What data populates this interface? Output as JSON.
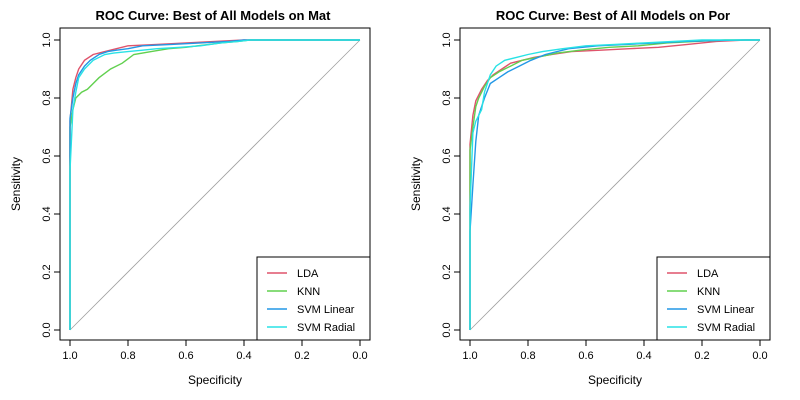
{
  "chart_data": [
    {
      "type": "line",
      "title": "ROC Curve: Best of All Models on Mat",
      "xlabel": "Specificity",
      "ylabel": "Sensitivity",
      "xlim": [
        1.0,
        0.0
      ],
      "ylim": [
        0.0,
        1.0
      ],
      "x_ticks": [
        "1.0",
        "0.8",
        "0.6",
        "0.4",
        "0.2",
        "0.0"
      ],
      "y_ticks": [
        "0.0",
        "0.2",
        "0.4",
        "0.6",
        "0.8",
        "1.0"
      ],
      "diagonal_reference": true,
      "legend": "bottom-right",
      "series": [
        {
          "name": "LDA",
          "color": "#DF536B",
          "x": [
            1.0,
            1.0,
            0.99,
            0.98,
            0.97,
            0.95,
            0.92,
            0.88,
            0.84,
            0.8,
            0.7,
            0.6,
            0.5,
            0.4,
            0.0
          ],
          "y": [
            0.0,
            0.72,
            0.83,
            0.87,
            0.9,
            0.93,
            0.95,
            0.96,
            0.97,
            0.98,
            0.985,
            0.99,
            0.995,
            1.0,
            1.0
          ]
        },
        {
          "name": "KNN",
          "color": "#61D04F",
          "x": [
            1.0,
            1.0,
            0.99,
            0.98,
            0.96,
            0.94,
            0.92,
            0.9,
            0.86,
            0.82,
            0.78,
            0.72,
            0.66,
            0.6,
            0.56,
            0.52,
            0.48,
            0.42,
            0.38,
            0.0
          ],
          "y": [
            0.0,
            0.7,
            0.76,
            0.8,
            0.82,
            0.83,
            0.85,
            0.87,
            0.9,
            0.92,
            0.95,
            0.96,
            0.97,
            0.975,
            0.98,
            0.985,
            0.99,
            0.995,
            1.0,
            1.0
          ]
        },
        {
          "name": "SVM Linear",
          "color": "#2297E6",
          "x": [
            1.0,
            1.0,
            0.99,
            0.98,
            0.97,
            0.95,
            0.93,
            0.9,
            0.87,
            0.84,
            0.8,
            0.75,
            0.65,
            0.55,
            0.45,
            0.4,
            0.0
          ],
          "y": [
            0.0,
            0.73,
            0.8,
            0.85,
            0.88,
            0.91,
            0.93,
            0.95,
            0.96,
            0.965,
            0.97,
            0.98,
            0.985,
            0.99,
            0.995,
            1.0,
            1.0
          ]
        },
        {
          "name": "SVM Radial",
          "color": "#28E2E5",
          "x": [
            1.0,
            1.0,
            0.99,
            0.98,
            0.97,
            0.95,
            0.92,
            0.88,
            0.85,
            0.8,
            0.75,
            0.7,
            0.62,
            0.55,
            0.48,
            0.42,
            0.38,
            0.0
          ],
          "y": [
            0.0,
            0.55,
            0.76,
            0.82,
            0.87,
            0.9,
            0.93,
            0.95,
            0.955,
            0.96,
            0.965,
            0.97,
            0.975,
            0.98,
            0.99,
            0.995,
            1.0,
            1.0
          ]
        }
      ]
    },
    {
      "type": "line",
      "title": "ROC Curve: Best of All Models on Por",
      "xlabel": "Specificity",
      "ylabel": "Sensitivity",
      "xlim": [
        1.0,
        0.0
      ],
      "ylim": [
        0.0,
        1.0
      ],
      "x_ticks": [
        "1.0",
        "0.8",
        "0.6",
        "0.4",
        "0.2",
        "0.0"
      ],
      "y_ticks": [
        "0.0",
        "0.2",
        "0.4",
        "0.6",
        "0.8",
        "1.0"
      ],
      "diagonal_reference": true,
      "legend": "bottom-right",
      "series": [
        {
          "name": "LDA",
          "color": "#DF536B",
          "x": [
            1.0,
            1.0,
            0.99,
            0.98,
            0.96,
            0.94,
            0.92,
            0.89,
            0.86,
            0.82,
            0.78,
            0.72,
            0.65,
            0.55,
            0.45,
            0.35,
            0.25,
            0.15,
            0.05,
            0.0
          ],
          "y": [
            0.0,
            0.64,
            0.74,
            0.79,
            0.83,
            0.86,
            0.88,
            0.9,
            0.92,
            0.93,
            0.94,
            0.95,
            0.96,
            0.965,
            0.97,
            0.975,
            0.985,
            0.995,
            1.0,
            1.0
          ]
        },
        {
          "name": "KNN",
          "color": "#61D04F",
          "x": [
            1.0,
            1.0,
            0.99,
            0.98,
            0.97,
            0.95,
            0.93,
            0.9,
            0.86,
            0.82,
            0.77,
            0.7,
            0.62,
            0.52,
            0.42,
            0.32,
            0.22,
            0.12,
            0.0
          ],
          "y": [
            0.0,
            0.62,
            0.7,
            0.77,
            0.8,
            0.84,
            0.87,
            0.89,
            0.91,
            0.93,
            0.94,
            0.955,
            0.965,
            0.975,
            0.98,
            0.99,
            0.995,
            1.0,
            1.0
          ]
        },
        {
          "name": "SVM Linear",
          "color": "#2297E6",
          "x": [
            1.0,
            1.0,
            0.99,
            0.98,
            0.97,
            0.95,
            0.93,
            0.9,
            0.87,
            0.83,
            0.79,
            0.74,
            0.66,
            0.56,
            0.46,
            0.36,
            0.26,
            0.16,
            0.06,
            0.0
          ],
          "y": [
            0.0,
            0.34,
            0.5,
            0.65,
            0.74,
            0.8,
            0.85,
            0.87,
            0.89,
            0.91,
            0.93,
            0.95,
            0.97,
            0.98,
            0.985,
            0.99,
            0.995,
            0.998,
            1.0,
            1.0
          ]
        },
        {
          "name": "SVM Radial",
          "color": "#28E2E5",
          "x": [
            1.0,
            1.0,
            0.99,
            0.98,
            0.96,
            0.95,
            0.93,
            0.91,
            0.88,
            0.84,
            0.8,
            0.75,
            0.68,
            0.6,
            0.5,
            0.4,
            0.3,
            0.2,
            0.1,
            0.0
          ],
          "y": [
            0.0,
            0.42,
            0.68,
            0.72,
            0.76,
            0.82,
            0.88,
            0.91,
            0.93,
            0.94,
            0.95,
            0.96,
            0.97,
            0.98,
            0.985,
            0.99,
            0.995,
            1.0,
            1.0,
            1.0
          ]
        }
      ]
    }
  ]
}
